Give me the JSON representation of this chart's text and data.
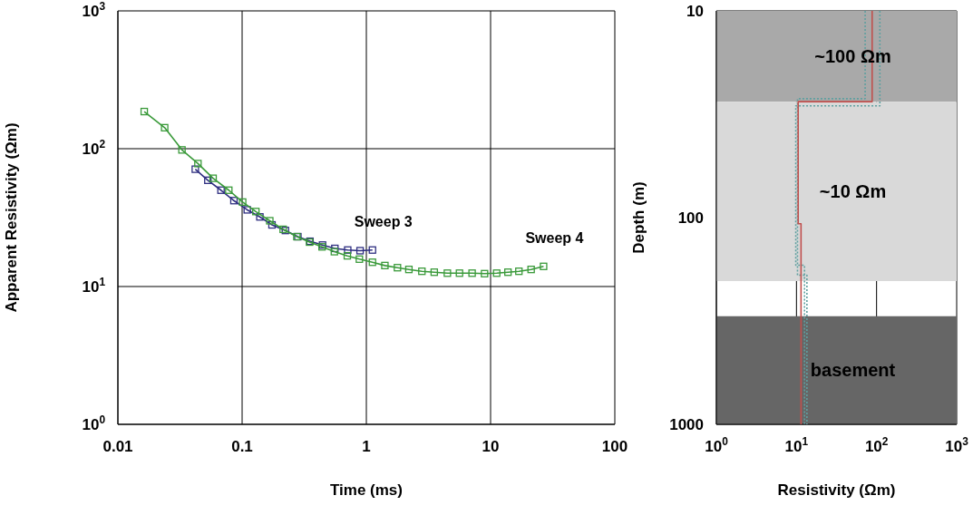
{
  "chart_data": [
    {
      "type": "line",
      "xlabel": "Time (ms)",
      "ylabel": "Apparent Resistivity  (Ωm)",
      "log": "xy",
      "grid": true,
      "marker": "square",
      "line_style": "solid",
      "xlim": [
        0.01,
        100
      ],
      "xticks": [
        0.01,
        0.1,
        1,
        10,
        100
      ],
      "ylim": [
        1,
        1000
      ],
      "yticks": [
        {
          "value": 1,
          "label": "10$^{0}$"
        },
        {
          "value": 10,
          "label": "10$^{1}$"
        },
        {
          "value": 100,
          "label": "10$^{2}$"
        },
        {
          "value": 1000,
          "label": "10$^{3}$"
        }
      ],
      "series": [
        {
          "name": "Sweep 3",
          "color": "#2e2e80",
          "x": [
            0.042,
            0.053,
            0.0676,
            0.0859,
            0.11,
            0.139,
            0.174,
            0.223,
            0.281,
            0.352,
            0.444,
            0.558,
            0.708,
            0.89,
            1.12
          ],
          "values": [
            71,
            59,
            50,
            42,
            36,
            32,
            28,
            25.5,
            23,
            21.3,
            20,
            18.9,
            18.4,
            18.2,
            18.4
          ]
        },
        {
          "name": "Sweep 4",
          "color": "#3a9a3a",
          "x": [
            0.0163,
            0.0238,
            0.0328,
            0.0441,
            0.0584,
            0.0781,
            0.101,
            0.129,
            0.167,
            0.214,
            0.276,
            0.349,
            0.44,
            0.553,
            0.703,
            0.879,
            1.12,
            1.41,
            1.78,
            2.2,
            2.8,
            3.52,
            4.49,
            5.62,
            7.1,
            8.94,
            11.2,
            13.8,
            16.9,
            21.2,
            26.7
          ],
          "values": [
            186,
            142,
            98,
            78,
            61,
            50,
            41,
            35,
            30,
            26,
            23,
            21,
            19.4,
            17.9,
            16.7,
            15.8,
            15,
            14.2,
            13.7,
            13.3,
            12.9,
            12.7,
            12.5,
            12.5,
            12.5,
            12.4,
            12.5,
            12.7,
            12.9,
            13.3,
            14
          ]
        }
      ]
    },
    {
      "type": "line",
      "xlabel": "Resistivity  (Ωm)",
      "ylabel": "Depth  (m)",
      "log": "xy",
      "grid": true,
      "xlim": [
        1,
        1000
      ],
      "xticks": [
        {
          "value": 1,
          "label": "10$^{0}$"
        },
        {
          "value": 10,
          "label": "10$^{1}$"
        },
        {
          "value": 100,
          "label": "10$^{2}$"
        },
        {
          "value": 1000,
          "label": "10$^{3}$"
        }
      ],
      "ylim": [
        1000,
        10
      ],
      "yticks": [
        10,
        100,
        1000
      ],
      "bands": [
        {
          "axis": "y",
          "from": 10,
          "to": 27.5,
          "color": "#a9a9a9"
        },
        {
          "axis": "y",
          "from": 27.5,
          "to": 203,
          "color": "#d9d9d9"
        },
        {
          "axis": "y",
          "from": 300,
          "to": 1000,
          "color": "#666666"
        }
      ],
      "annotations": [
        "~100 Ωm",
        "~10 Ωm",
        "basement"
      ],
      "series": [
        {
          "color": "#5fa0a0",
          "line_style": "dotted",
          "x": [
            110,
            110,
            9.8,
            9.8,
            12.6,
            12.6
          ],
          "values": [
            10,
            28.8,
            28.8,
            170,
            170,
            1000
          ]
        },
        {
          "color": "#5fa0a0",
          "line_style": "dotted",
          "x": [
            72,
            72,
            10.3,
            10.3,
            13.5,
            13.5
          ],
          "values": [
            10,
            26.6,
            26.6,
            190,
            190,
            1000
          ]
        },
        {
          "color": "#c0504d",
          "line_style": "solid",
          "x": [
            88,
            88,
            10.5,
            10.5,
            11.4,
            11.4
          ],
          "values": [
            10,
            27.5,
            27.5,
            107,
            107,
            1000
          ]
        }
      ]
    }
  ]
}
